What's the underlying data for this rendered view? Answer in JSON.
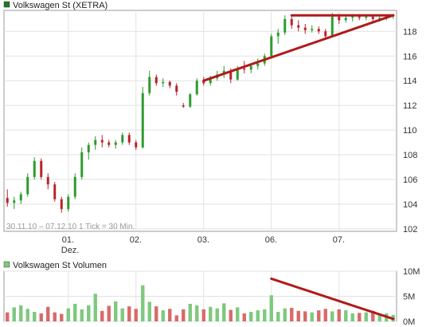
{
  "chart_data": [
    {
      "type": "candlestick",
      "legend": {
        "label": "Volkswagen St (XETRA)",
        "color": "#1f7a1f"
      },
      "footnote": "30.11.10 – 07.12.10   1 Tick = 30 Min.",
      "y_ticks": [
        102,
        104,
        106,
        108,
        110,
        112,
        114,
        116,
        118
      ],
      "ylim": [
        101.8,
        119.7
      ],
      "x_ticks": [
        {
          "label": "01.",
          "sublabel": "Dez.",
          "index": 9.5
        },
        {
          "label": "02.",
          "sublabel": "",
          "index": 19.5
        },
        {
          "label": "03.",
          "sublabel": "",
          "index": 29.5
        },
        {
          "label": "06.",
          "sublabel": "",
          "index": 39.5
        },
        {
          "label": "07.",
          "sublabel": "",
          "index": 49.5
        }
      ],
      "x_count": 58,
      "colors": {
        "up": "#2e9b2e",
        "down": "#b8232a",
        "trendline": "#b01a1a"
      },
      "candles": [
        [
          104.5,
          105.2,
          103.8,
          104.1
        ],
        [
          104.1,
          104.6,
          103.6,
          104.3
        ],
        [
          104.3,
          105.0,
          104.0,
          104.8
        ],
        [
          104.8,
          106.5,
          104.6,
          106.2
        ],
        [
          106.2,
          107.8,
          106.0,
          107.5
        ],
        [
          107.5,
          107.7,
          106.0,
          106.2
        ],
        [
          106.2,
          106.5,
          105.2,
          105.6
        ],
        [
          105.6,
          105.8,
          104.2,
          104.4
        ],
        [
          104.4,
          104.6,
          103.3,
          103.6
        ],
        [
          103.6,
          104.8,
          103.4,
          104.6
        ],
        [
          104.6,
          106.5,
          104.4,
          106.2
        ],
        [
          106.2,
          108.6,
          106.0,
          108.2
        ],
        [
          108.2,
          109.0,
          107.6,
          108.8
        ],
        [
          108.8,
          109.5,
          108.4,
          109.2
        ],
        [
          109.2,
          109.6,
          108.6,
          109.0
        ],
        [
          109.0,
          109.2,
          108.6,
          108.8
        ],
        [
          108.8,
          109.2,
          108.5,
          109.0
        ],
        [
          109.0,
          109.8,
          108.8,
          109.6
        ],
        [
          109.6,
          109.8,
          108.8,
          109.0
        ],
        [
          109.0,
          109.2,
          108.4,
          108.6
        ],
        [
          108.6,
          113.5,
          108.5,
          113.0
        ],
        [
          113.0,
          114.8,
          112.8,
          114.3
        ],
        [
          114.3,
          114.5,
          113.6,
          113.8
        ],
        [
          113.8,
          114.2,
          113.5,
          113.9
        ],
        [
          113.9,
          114.0,
          113.4,
          113.6
        ],
        [
          113.6,
          113.8,
          112.8,
          113.1
        ],
        [
          112.0,
          112.2,
          111.8,
          111.9
        ],
        [
          111.9,
          113.0,
          111.8,
          112.9
        ],
        [
          112.9,
          114.2,
          112.8,
          114.0
        ],
        [
          114.0,
          114.3,
          113.6,
          113.8
        ],
        [
          113.8,
          114.4,
          113.6,
          114.2
        ],
        [
          114.2,
          114.8,
          114.0,
          114.5
        ],
        [
          114.5,
          115.2,
          114.2,
          114.8
        ],
        [
          114.8,
          115.0,
          113.8,
          114.1
        ],
        [
          114.1,
          115.2,
          114.0,
          115.0
        ],
        [
          115.0,
          115.6,
          114.6,
          114.9
        ],
        [
          114.9,
          115.4,
          114.6,
          115.2
        ],
        [
          115.2,
          115.8,
          114.9,
          115.4
        ],
        [
          115.4,
          116.2,
          115.2,
          116.0
        ],
        [
          116.0,
          117.8,
          115.8,
          117.6
        ],
        [
          117.6,
          118.2,
          117.0,
          117.9
        ],
        [
          117.9,
          119.3,
          117.7,
          119.0
        ],
        [
          119.0,
          119.3,
          118.2,
          118.5
        ],
        [
          118.5,
          118.9,
          118.0,
          118.3
        ],
        [
          118.3,
          118.6,
          117.8,
          118.1
        ],
        [
          118.1,
          118.5,
          117.9,
          118.2
        ],
        [
          118.2,
          118.4,
          117.8,
          118.0
        ],
        [
          118.0,
          118.2,
          117.4,
          117.6
        ],
        [
          117.6,
          119.5,
          117.5,
          119.2
        ],
        [
          119.2,
          119.4,
          118.6,
          118.9
        ],
        [
          118.9,
          119.3,
          118.7,
          119.1
        ],
        [
          119.1,
          119.4,
          118.8,
          119.2
        ],
        [
          119.2,
          119.4,
          118.9,
          119.1
        ],
        [
          119.1,
          119.4,
          118.9,
          119.2
        ],
        [
          119.2,
          119.3,
          118.8,
          119.0
        ],
        [
          119.0,
          119.2,
          118.8,
          119.1
        ],
        [
          119.1,
          119.3,
          118.9,
          119.2
        ],
        [
          119.2,
          119.4,
          119.0,
          119.3
        ]
      ],
      "trendlines": [
        {
          "from": [
            29.5,
            114.0
          ],
          "to": [
            57.5,
            119.3
          ]
        },
        {
          "from": [
            42.5,
            119.3
          ],
          "to": [
            57.5,
            119.3
          ]
        }
      ]
    },
    {
      "type": "bar",
      "legend": {
        "label": "Volkswagen St Volumen",
        "color": "#7ec97e"
      },
      "y_ticks": [
        {
          "value": 0,
          "label": "0M"
        },
        {
          "value": 5,
          "label": "5M"
        },
        {
          "value": 10,
          "label": "10M"
        }
      ],
      "ylim": [
        0,
        10
      ],
      "colors": {
        "up": "#7ec97e",
        "down": "#d86a6a",
        "trendline": "#b01a1a"
      },
      "volumes": [
        1.8,
        2.8,
        3.2,
        2.5,
        1.9,
        1.6,
        2.9,
        1.8,
        1.5,
        2.6,
        3.5,
        2.4,
        3.2,
        5.5,
        2.1,
        3.1,
        4.0,
        2.6,
        3.0,
        2.5,
        7.2,
        3.9,
        3.0,
        2.2,
        2.5,
        1.2,
        2.4,
        3.5,
        3.2,
        2.4,
        2.9,
        2.6,
        3.6,
        2.3,
        2.8,
        1.6,
        1.9,
        2.2,
        2.4,
        5.2,
        1.9,
        2.6,
        2.7,
        2.1,
        2.0,
        1.8,
        2.2,
        2.5,
        2.0,
        2.4,
        2.2,
        1.6,
        1.7,
        1.8,
        2.1,
        1.5,
        1.6,
        1.3
      ],
      "trendlines": [
        {
          "from": [
            39.5,
            8.5
          ],
          "to": [
            57.5,
            0.5
          ]
        }
      ]
    }
  ]
}
